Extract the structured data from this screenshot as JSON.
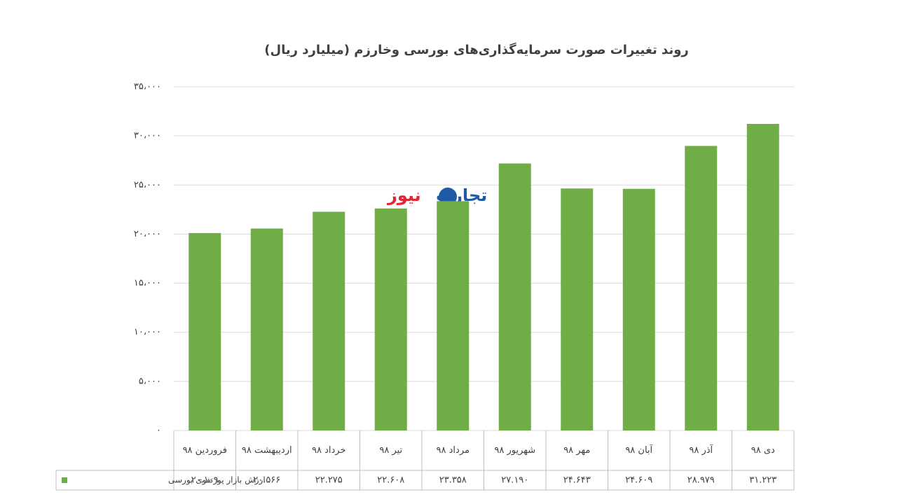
{
  "chart_data": {
    "type": "bar",
    "title": "روند تغییرات صورت سرمایه‌گذاری‌های بورسی وخارزم (میلیارد ریال)",
    "watermark": [
      "تجارت",
      "نیوز"
    ],
    "categories": [
      "فروردین ۹۸",
      "اردیبهشت ۹۸",
      "خرداد ۹۸",
      "تیر ۹۸",
      "مرداد ۹۸",
      "شهریور ۹۸",
      "مهر ۹۸",
      "آبان ۹۸",
      "آذر ۹۸",
      "دی ۹۸"
    ],
    "series": [
      {
        "name": "ارزش بازار پورتفوی بورسی",
        "color": "#70ad47",
        "values": [
          20109,
          20566,
          22275,
          22608,
          23358,
          27190,
          24643,
          24609,
          28979,
          31223
        ],
        "value_labels": [
          "۲۰.۱۰۹",
          "۲۰.۵۶۶",
          "۲۲.۲۷۵",
          "۲۲.۶۰۸",
          "۲۳.۳۵۸",
          "۲۷.۱۹۰",
          "۲۴.۶۴۳",
          "۲۴.۶۰۹",
          "۲۸.۹۷۹",
          "۳۱.۲۲۳"
        ]
      }
    ],
    "ylim": [
      0,
      35000
    ],
    "yticks": [
      {
        "value": 0,
        "label": "۰"
      },
      {
        "value": 5000,
        "label": "۵،۰۰۰"
      },
      {
        "value": 10000,
        "label": "۱۰،۰۰۰"
      },
      {
        "value": 15000,
        "label": "۱۵،۰۰۰"
      },
      {
        "value": 20000,
        "label": "۲۰،۰۰۰"
      },
      {
        "value": 25000,
        "label": "۲۵،۰۰۰"
      },
      {
        "value": 30000,
        "label": "۳۰،۰۰۰"
      },
      {
        "value": 35000,
        "label": "۳۵،۰۰۰"
      }
    ],
    "grid": true
  }
}
